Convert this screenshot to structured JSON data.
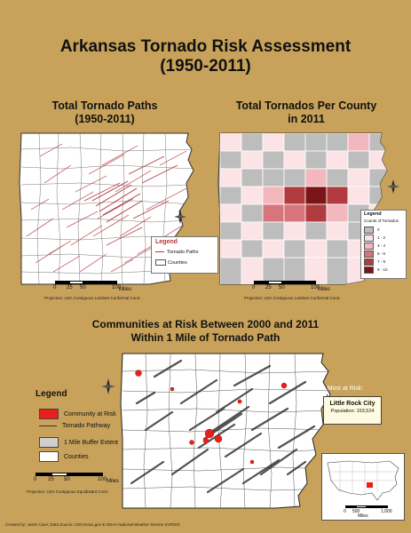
{
  "title": {
    "line1": "Arkansas Tornado Risk Assessment",
    "line2": "(1950-2011)"
  },
  "map1": {
    "title_line1": "Total Tornado Paths",
    "title_line2": "(1950-2011)",
    "legend_title": "Legend",
    "legend_items": [
      "Tornado Paths",
      "Counties"
    ],
    "scale_ticks": [
      "0",
      "25",
      "50",
      "100"
    ],
    "scale_unit": "Miles",
    "projection": "Projection: USA Contiguous Lambert Conformal Conic"
  },
  "map2": {
    "title_line1": "Total Tornados Per County",
    "title_line2": "in 2011",
    "legend_title": "Legend",
    "legend_subtitle": "Counts of Tornados",
    "classes": [
      {
        "label": "0",
        "color": "#bdbdbd"
      },
      {
        "label": "1 - 2",
        "color": "#fbe3e6"
      },
      {
        "label": "3 - 4",
        "color": "#f2b8bd"
      },
      {
        "label": "5 - 6",
        "color": "#d8757c"
      },
      {
        "label": "7 - 8",
        "color": "#b23b40"
      },
      {
        "label": "9 - 10",
        "color": "#7a1418"
      }
    ],
    "scale_ticks": [
      "0",
      "25",
      "50",
      "100"
    ],
    "scale_unit": "Miles",
    "projection": "Projection: USA Contiguous Lambert Conformal Conic"
  },
  "map3": {
    "title_line1": "Communities at Risk Between 2000 and 2011",
    "title_line2": "Within 1 Mile of Tornado Path",
    "legend_title": "Legend",
    "legend_items": [
      {
        "label": "Community at Risk",
        "color": "#e8201c"
      },
      {
        "label": "Tornado Pathway",
        "color": "#333333"
      },
      {
        "label": "1 Mile Buffer Extent",
        "color": "#cfcfcf"
      },
      {
        "label": "Counties",
        "color": "#ffffff"
      }
    ],
    "scale_ticks": [
      "0",
      "25",
      "50",
      "100"
    ],
    "scale_unit": "Miles",
    "projection": "Projection: USA Contiguous Equidistant Conic",
    "risk_heading": "Most at Risk:",
    "risk_city": "Little Rock City",
    "risk_population": "Population: 193,524",
    "inset_scale": [
      "0",
      "500",
      "1,000"
    ],
    "inset_unit": "Miles"
  },
  "north_label": "N",
  "credits": "Created by: Justin Cave; Data Source: USCensus.gov & NOAA National Weather Service SVRGIS",
  "colors": {
    "background": "#c8a25a",
    "highlight": "#e8201c"
  }
}
